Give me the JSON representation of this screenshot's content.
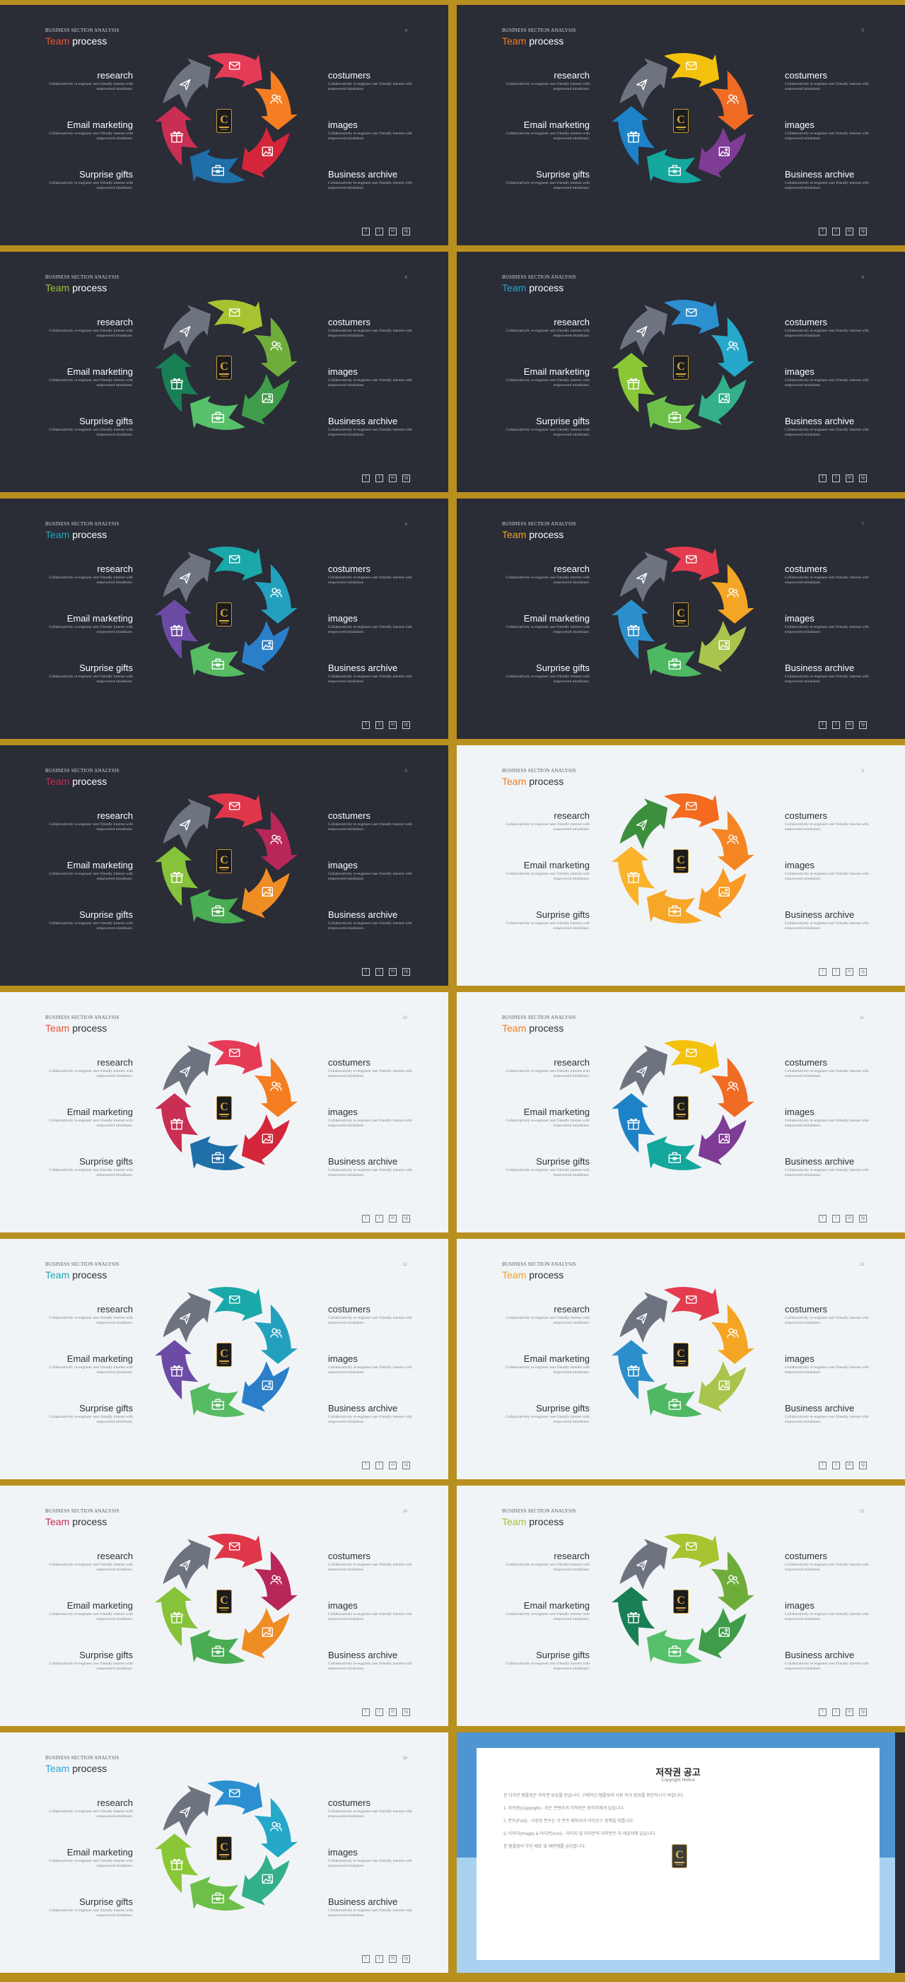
{
  "common": {
    "brand": "BUSINESS SECTION ANALYSIS",
    "title_accent": "Team",
    "title_rest": "process",
    "items": [
      {
        "label": "research",
        "desc": "Collaboratively re-engineer user friendly interest with empowered mindshare."
      },
      {
        "label": "costumers",
        "desc": "Collaboratively re-engineer user friendly interest with empowered mindshare."
      },
      {
        "label": "Email marketing",
        "desc": "Collaboratively re-engineer user friendly interest with empowered mindshare."
      },
      {
        "label": "images",
        "desc": "Collaboratively re-engineer user friendly interest with empowered mindshare."
      },
      {
        "label": "Surprise gifts",
        "desc": "Collaboratively re-engineer user friendly interest with empowered mindshare."
      },
      {
        "label": "Business archive",
        "desc": "Collaboratively re-engineer user friendly interest with empowered mindshare."
      }
    ],
    "logo_letter": "C",
    "social": [
      "f",
      "t",
      "in",
      "ig"
    ],
    "segment_icons": [
      "mail-icon",
      "users-icon",
      "image-icon",
      "briefcase-icon",
      "gift-icon",
      "send-icon"
    ]
  },
  "slides": [
    {
      "theme": "dark",
      "page": "4",
      "accent": "#e8543a",
      "colors": [
        "#e63b57",
        "#f47e21",
        "#d3263b",
        "#1f6fa8",
        "#c82f52",
        "#6d7480"
      ]
    },
    {
      "theme": "dark",
      "page": "5",
      "accent": "#f07d20",
      "colors": [
        "#f4c20d",
        "#f06b23",
        "#7e3c95",
        "#14a79d",
        "#1d82c8",
        "#6d7480"
      ]
    },
    {
      "theme": "dark",
      "page": "6",
      "accent": "#9cc33a",
      "colors": [
        "#a6c430",
        "#6fad3b",
        "#3f9c4a",
        "#57c06a",
        "#197f55",
        "#6d7480"
      ]
    },
    {
      "theme": "dark",
      "page": "6",
      "accent": "#27a3d9",
      "colors": [
        "#2b8fd0",
        "#25a8c9",
        "#33b08a",
        "#6cc04a",
        "#8ac736",
        "#6d7480"
      ]
    },
    {
      "theme": "dark",
      "page": "6",
      "accent": "#1fa9b5",
      "colors": [
        "#1aa8a8",
        "#24a0bf",
        "#2b7fc9",
        "#56bb62",
        "#6c4ba5",
        "#6d7480"
      ]
    },
    {
      "theme": "dark",
      "page": "7",
      "accent": "#f0a12b",
      "colors": [
        "#e43b4f",
        "#f3a523",
        "#a9c54d",
        "#4eb862",
        "#2b8fcb",
        "#6d7480"
      ]
    },
    {
      "theme": "dark",
      "page": "8",
      "accent": "#c22d53",
      "colors": [
        "#e0364a",
        "#b82759",
        "#ef8d25",
        "#4aac53",
        "#86c23a",
        "#6d7480"
      ]
    },
    {
      "theme": "light",
      "page": "9",
      "accent": "#f07d20",
      "colors": [
        "#f46a1e",
        "#f58522",
        "#f89b26",
        "#f6a728",
        "#fbb32c",
        "#3c8f3d"
      ]
    },
    {
      "theme": "light",
      "page": "10",
      "accent": "#e8543a",
      "colors": [
        "#e63b57",
        "#f47e21",
        "#d3263b",
        "#1f6fa8",
        "#c82f52",
        "#6d7480"
      ]
    },
    {
      "theme": "light",
      "page": "11",
      "accent": "#f07d20",
      "colors": [
        "#f4c20d",
        "#f06b23",
        "#7e3c95",
        "#14a79d",
        "#1d82c8",
        "#6d7480"
      ]
    },
    {
      "theme": "light",
      "page": "12",
      "accent": "#1fa9b5",
      "colors": [
        "#1aa8a8",
        "#24a0bf",
        "#2b7fc9",
        "#56bb62",
        "#6c4ba5",
        "#6d7480"
      ]
    },
    {
      "theme": "light",
      "page": "13",
      "accent": "#f0a12b",
      "colors": [
        "#e43b4f",
        "#f3a523",
        "#a9c54d",
        "#4eb862",
        "#2b8fcb",
        "#6d7480"
      ]
    },
    {
      "theme": "light",
      "page": "14",
      "accent": "#c22d53",
      "colors": [
        "#e0364a",
        "#b82759",
        "#ef8d25",
        "#4aac53",
        "#86c23a",
        "#6d7480"
      ]
    },
    {
      "theme": "light",
      "page": "15",
      "accent": "#9cc33a",
      "colors": [
        "#a6c430",
        "#6fad3b",
        "#3f9c4a",
        "#57c06a",
        "#197f55",
        "#6d7480"
      ]
    },
    {
      "theme": "light",
      "page": "16",
      "accent": "#27a3d9",
      "colors": [
        "#2b8fd0",
        "#25a8c9",
        "#33b08a",
        "#6cc04a",
        "#8ac736",
        "#6d7480"
      ]
    }
  ],
  "notice": {
    "title": "저작권 공고",
    "subtitle": "Copyright Notice",
    "paragraphs": [
      "본 디자인 템플릿은 저작권 보호를 받습니다. 구매하신 템플릿의 사용 허가 범위를 확인하시기 바랍니다.",
      "1. 저작권(Copyright) - 모든 콘텐츠의 저작권은 원작자에게 있습니다.",
      "2. 폰트(Font) - 사용된 폰트는 각 폰트 제작사의 라이선스 정책을 따릅니다.",
      "3. 이미지(Image) & 아이콘(Icon) - 이미지 및 아이콘의 저작권은 각 제공처에 있습니다.",
      "본 템플릿의 무단 배포 및 재판매를 금지합니다."
    ]
  }
}
